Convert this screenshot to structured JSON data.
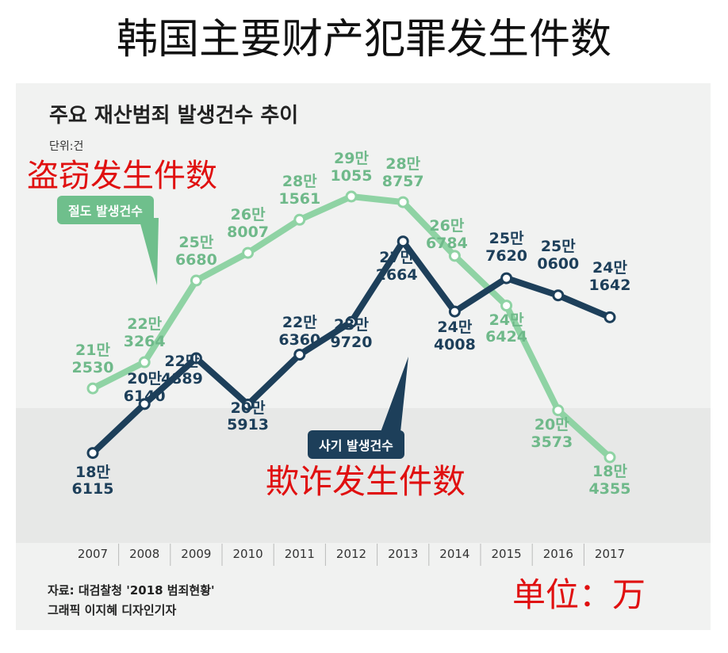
{
  "chart_data": {
    "type": "line",
    "title": "韩国主要财产犯罪发生件数",
    "subtitle": "주요 재산범죄 발생건수 추이",
    "unit_note": "단위:건",
    "annotations": [
      "盗窃发生件数",
      "欺诈发生件数",
      "单位：万"
    ],
    "source": [
      "자료: 대검찰청 '2018 범죄현황'",
      "그래픽 이지혜 디자인기자"
    ],
    "categories": [
      "2007",
      "2008",
      "2009",
      "2010",
      "2011",
      "2012",
      "2013",
      "2014",
      "2015",
      "2016",
      "2017"
    ],
    "series": [
      {
        "name": "절도 발생건수",
        "color": "#8fd3a4",
        "label_color": "#6fb98a",
        "values": [
          212530,
          223264,
          256680,
          268007,
          281561,
          291055,
          288757,
          266784,
          246424,
          203573,
          184355
        ],
        "value_labels": [
          "21만\n2530",
          "22만\n3264",
          "25만\n6680",
          "26만\n8007",
          "28만\n1561",
          "29만\n1055",
          "28만\n8757",
          "26만\n6784",
          "24만\n6424",
          "20만\n3573",
          "18만\n4355"
        ]
      },
      {
        "name": "사기 발생건수",
        "color": "#1d3f5a",
        "label_color": "#1d3f5a",
        "values": [
          186115,
          206140,
          224889,
          205913,
          226360,
          239720,
          272664,
          244008,
          257620,
          250600,
          241642
        ],
        "value_labels": [
          "18만\n6115",
          "20만\n6140",
          "22만\n4889",
          "20만\n5913",
          "22만\n6360",
          "23만\n9720",
          "27만\n2664",
          "24만\n4008",
          "25만\n7620",
          "25만\n0600",
          "24만\n1642"
        ]
      }
    ]
  }
}
